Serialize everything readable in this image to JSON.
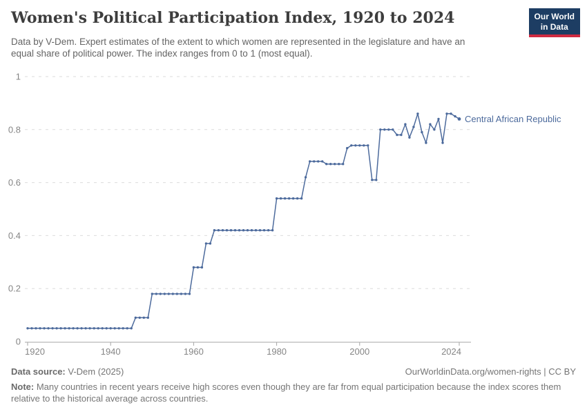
{
  "header": {
    "title": "Women's Political Participation Index, 1920 to 2024",
    "subtitle": "Data by V-Dem. Expert estimates of the extent to which women are represented in the legislature and have an equal share of political power. The index ranges from 0 to 1 (most equal).",
    "logo": {
      "line1": "Our World",
      "line2": "in Data"
    }
  },
  "colors": {
    "line": "#4C6A9C",
    "entity_label": "#4C6A9C",
    "grid": "#DBDBDB",
    "axis": "#A5A5A5",
    "tick_label": "#858585",
    "title": "#3D3D3D",
    "subtitle": "#646464",
    "footer": "#757575",
    "logo_bg": "#1D3D63",
    "logo_red": "#CF2B42"
  },
  "chart_data": {
    "type": "line",
    "title": "Women's Political Participation Index, 1920 to 2024",
    "entity_label": "Central African Republic",
    "xlabel": "",
    "ylabel": "",
    "xlim": [
      1920,
      2024
    ],
    "ylim": [
      0,
      1
    ],
    "x_ticks": [
      1920,
      1940,
      1960,
      1980,
      2000,
      2024
    ],
    "y_ticks": [
      0,
      0.2,
      0.4,
      0.6,
      0.8,
      1
    ],
    "y_tick_labels": [
      "0",
      "0.2",
      "0.4",
      "0.6",
      "0.8",
      "1"
    ],
    "grid": "horizontal dashed, no vertical grid",
    "legend_position": "label at end of line",
    "series": [
      {
        "name": "Central African Republic",
        "color": "#4C6A9C",
        "x": [
          1920,
          1921,
          1922,
          1923,
          1924,
          1925,
          1926,
          1927,
          1928,
          1929,
          1930,
          1931,
          1932,
          1933,
          1934,
          1935,
          1936,
          1937,
          1938,
          1939,
          1940,
          1941,
          1942,
          1943,
          1944,
          1945,
          1946,
          1947,
          1948,
          1949,
          1950,
          1951,
          1952,
          1953,
          1954,
          1955,
          1956,
          1957,
          1958,
          1959,
          1960,
          1961,
          1962,
          1963,
          1964,
          1965,
          1966,
          1967,
          1968,
          1969,
          1970,
          1971,
          1972,
          1973,
          1974,
          1975,
          1976,
          1977,
          1978,
          1979,
          1980,
          1981,
          1982,
          1983,
          1984,
          1985,
          1986,
          1987,
          1988,
          1989,
          1990,
          1991,
          1992,
          1993,
          1994,
          1995,
          1996,
          1997,
          1998,
          1999,
          2000,
          2001,
          2002,
          2003,
          2004,
          2005,
          2006,
          2007,
          2008,
          2009,
          2010,
          2011,
          2012,
          2013,
          2014,
          2015,
          2016,
          2017,
          2018,
          2019,
          2020,
          2021,
          2022,
          2023,
          2024
        ],
        "values": [
          0.05,
          0.05,
          0.05,
          0.05,
          0.05,
          0.05,
          0.05,
          0.05,
          0.05,
          0.05,
          0.05,
          0.05,
          0.05,
          0.05,
          0.05,
          0.05,
          0.05,
          0.05,
          0.05,
          0.05,
          0.05,
          0.05,
          0.05,
          0.05,
          0.05,
          0.05,
          0.09,
          0.09,
          0.09,
          0.09,
          0.18,
          0.18,
          0.18,
          0.18,
          0.18,
          0.18,
          0.18,
          0.18,
          0.18,
          0.18,
          0.28,
          0.28,
          0.28,
          0.37,
          0.37,
          0.42,
          0.42,
          0.42,
          0.42,
          0.42,
          0.42,
          0.42,
          0.42,
          0.42,
          0.42,
          0.42,
          0.42,
          0.42,
          0.42,
          0.42,
          0.54,
          0.54,
          0.54,
          0.54,
          0.54,
          0.54,
          0.54,
          0.62,
          0.68,
          0.68,
          0.68,
          0.68,
          0.67,
          0.67,
          0.67,
          0.67,
          0.67,
          0.73,
          0.74,
          0.74,
          0.74,
          0.74,
          0.74,
          0.61,
          0.61,
          0.8,
          0.8,
          0.8,
          0.8,
          0.78,
          0.78,
          0.82,
          0.77,
          0.81,
          0.86,
          0.79,
          0.75,
          0.82,
          0.8,
          0.84,
          0.75,
          0.86,
          0.86,
          0.85,
          0.84
        ]
      }
    ]
  },
  "footer": {
    "source_label": "Data source:",
    "source_value": "V-Dem (2025)",
    "attribution": "OurWorldinData.org/women-rights | CC BY",
    "note_label": "Note:",
    "note_text": "Many countries in recent years receive high scores even though they are far from equal participation because the index scores them relative to the historical average across countries."
  }
}
